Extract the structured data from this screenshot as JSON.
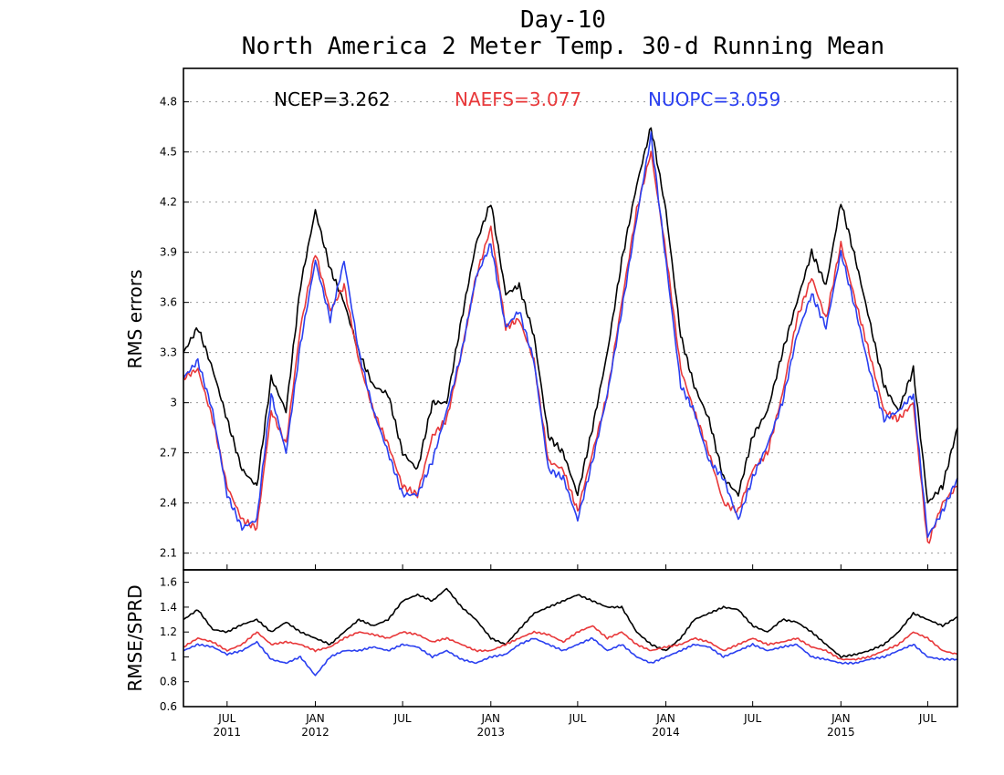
{
  "title_line1": "Day-10",
  "title_line2": "North America 2 Meter Temp. 30-d Running Mean",
  "chart_data": [
    {
      "type": "line",
      "panel": "top",
      "ylabel": "RMS errors",
      "ylim": [
        2.0,
        5.0
      ],
      "yticks": [
        "2.1",
        "2.4",
        "2.7",
        "3",
        "3.3",
        "3.6",
        "3.9",
        "4.2",
        "4.5",
        "4.8"
      ],
      "grid": true,
      "annotations": [
        {
          "text": "NCEP=3.262",
          "color": "#000000"
        },
        {
          "text": "NAEFS=3.077",
          "color": "#e8383a"
        },
        {
          "text": "NUOPC=3.059",
          "color": "#2a3ff0"
        }
      ],
      "x": [
        "2011-04-01",
        "2011-05-01",
        "2011-06-01",
        "2011-07-01",
        "2011-08-01",
        "2011-09-01",
        "2011-10-01",
        "2011-11-01",
        "2011-12-01",
        "2012-01-01",
        "2012-02-01",
        "2012-03-01",
        "2012-04-01",
        "2012-05-01",
        "2012-06-01",
        "2012-07-01",
        "2012-08-01",
        "2012-09-01",
        "2012-10-01",
        "2012-11-01",
        "2012-12-01",
        "2013-01-01",
        "2013-02-01",
        "2013-03-01",
        "2013-04-01",
        "2013-05-01",
        "2013-06-01",
        "2013-07-01",
        "2013-08-01",
        "2013-09-01",
        "2013-10-01",
        "2013-11-01",
        "2013-12-01",
        "2014-01-01",
        "2014-02-01",
        "2014-03-01",
        "2014-04-01",
        "2014-05-01",
        "2014-06-01",
        "2014-07-01",
        "2014-08-01",
        "2014-09-01",
        "2014-10-01",
        "2014-11-01",
        "2014-12-01",
        "2015-01-01",
        "2015-02-01",
        "2015-03-01",
        "2015-04-01",
        "2015-05-01",
        "2015-06-01",
        "2015-07-01",
        "2015-08-01",
        "2015-09-01"
      ],
      "series": [
        {
          "color": "#000000",
          "values": [
            3.3,
            3.45,
            3.2,
            2.9,
            2.6,
            2.5,
            3.15,
            2.95,
            3.7,
            4.15,
            3.8,
            3.6,
            3.3,
            3.1,
            3.05,
            2.7,
            2.6,
            3.0,
            3.0,
            3.5,
            3.95,
            4.2,
            3.65,
            3.7,
            3.4,
            2.8,
            2.7,
            2.45,
            2.85,
            3.3,
            3.85,
            4.3,
            4.65,
            4.15,
            3.4,
            3.1,
            2.9,
            2.55,
            2.45,
            2.8,
            2.95,
            3.3,
            3.6,
            3.9,
            3.7,
            4.2,
            3.85,
            3.5,
            3.1,
            2.95,
            3.2,
            2.4,
            2.5,
            2.85
          ]
        },
        {
          "color": "#e8383a",
          "values": [
            3.15,
            3.2,
            2.9,
            2.5,
            2.3,
            2.25,
            2.95,
            2.75,
            3.45,
            3.9,
            3.55,
            3.7,
            3.25,
            2.95,
            2.75,
            2.5,
            2.45,
            2.8,
            2.9,
            3.3,
            3.75,
            4.05,
            3.45,
            3.5,
            3.25,
            2.65,
            2.6,
            2.35,
            2.7,
            3.05,
            3.6,
            4.15,
            4.5,
            3.9,
            3.2,
            2.95,
            2.7,
            2.4,
            2.35,
            2.6,
            2.7,
            3.05,
            3.5,
            3.75,
            3.5,
            3.95,
            3.6,
            3.3,
            2.95,
            2.9,
            3.0,
            2.15,
            2.4,
            2.5
          ]
        },
        {
          "color": "#2a3ff0",
          "values": [
            3.15,
            3.25,
            2.95,
            2.45,
            2.25,
            2.3,
            3.05,
            2.7,
            3.35,
            3.85,
            3.5,
            3.85,
            3.3,
            2.95,
            2.7,
            2.45,
            2.45,
            2.65,
            2.95,
            3.3,
            3.75,
            3.95,
            3.45,
            3.55,
            3.25,
            2.6,
            2.55,
            2.3,
            2.65,
            3.05,
            3.55,
            4.1,
            4.6,
            3.85,
            3.1,
            2.95,
            2.65,
            2.55,
            2.3,
            2.55,
            2.75,
            3.0,
            3.4,
            3.65,
            3.45,
            3.9,
            3.55,
            3.2,
            2.9,
            2.95,
            3.05,
            2.2,
            2.35,
            2.55
          ]
        }
      ]
    },
    {
      "type": "line",
      "panel": "bottom",
      "ylabel": "RMSE/SPRD",
      "ylim": [
        0.6,
        1.7
      ],
      "yticks": [
        "0.6",
        "0.8",
        "1",
        "1.2",
        "1.4",
        "1.6"
      ],
      "grid": false,
      "xticks": [
        {
          "month": "JUL",
          "year": "2011",
          "date": "2011-07-01"
        },
        {
          "month": "JAN",
          "year": "2012",
          "date": "2012-01-01"
        },
        {
          "month": "JUL",
          "year": "",
          "date": "2012-07-01"
        },
        {
          "month": "JAN",
          "year": "2013",
          "date": "2013-01-01"
        },
        {
          "month": "JUL",
          "year": "",
          "date": "2013-07-01"
        },
        {
          "month": "JAN",
          "year": "2014",
          "date": "2014-01-01"
        },
        {
          "month": "JUL",
          "year": "",
          "date": "2014-07-01"
        },
        {
          "month": "JAN",
          "year": "2015",
          "date": "2015-01-01"
        },
        {
          "month": "JUL",
          "year": "",
          "date": "2015-07-01"
        }
      ],
      "xlim": [
        "2011-04-01",
        "2015-09-01"
      ],
      "x": [
        "2011-04-01",
        "2011-05-01",
        "2011-06-01",
        "2011-07-01",
        "2011-08-01",
        "2011-09-01",
        "2011-10-01",
        "2011-11-01",
        "2011-12-01",
        "2012-01-01",
        "2012-02-01",
        "2012-03-01",
        "2012-04-01",
        "2012-05-01",
        "2012-06-01",
        "2012-07-01",
        "2012-08-01",
        "2012-09-01",
        "2012-10-01",
        "2012-11-01",
        "2012-12-01",
        "2013-01-01",
        "2013-02-01",
        "2013-03-01",
        "2013-04-01",
        "2013-05-01",
        "2013-06-01",
        "2013-07-01",
        "2013-08-01",
        "2013-09-01",
        "2013-10-01",
        "2013-11-01",
        "2013-12-01",
        "2014-01-01",
        "2014-02-01",
        "2014-03-01",
        "2014-04-01",
        "2014-05-01",
        "2014-06-01",
        "2014-07-01",
        "2014-08-01",
        "2014-09-01",
        "2014-10-01",
        "2014-11-01",
        "2014-12-01",
        "2015-01-01",
        "2015-02-01",
        "2015-03-01",
        "2015-04-01",
        "2015-05-01",
        "2015-06-01",
        "2015-07-01",
        "2015-08-01",
        "2015-09-01"
      ],
      "series": [
        {
          "color": "#000000",
          "values": [
            1.3,
            1.38,
            1.22,
            1.2,
            1.26,
            1.3,
            1.2,
            1.28,
            1.2,
            1.15,
            1.1,
            1.2,
            1.3,
            1.25,
            1.3,
            1.45,
            1.5,
            1.45,
            1.55,
            1.4,
            1.3,
            1.15,
            1.1,
            1.22,
            1.35,
            1.4,
            1.45,
            1.5,
            1.45,
            1.4,
            1.4,
            1.2,
            1.1,
            1.05,
            1.15,
            1.3,
            1.35,
            1.4,
            1.38,
            1.25,
            1.2,
            1.3,
            1.28,
            1.2,
            1.1,
            1.0,
            1.02,
            1.05,
            1.1,
            1.2,
            1.35,
            1.3,
            1.25,
            1.32
          ]
        },
        {
          "color": "#e8383a",
          "values": [
            1.08,
            1.15,
            1.12,
            1.05,
            1.1,
            1.2,
            1.1,
            1.12,
            1.1,
            1.05,
            1.08,
            1.15,
            1.2,
            1.18,
            1.15,
            1.2,
            1.18,
            1.12,
            1.15,
            1.1,
            1.05,
            1.05,
            1.1,
            1.15,
            1.2,
            1.18,
            1.12,
            1.2,
            1.25,
            1.15,
            1.2,
            1.1,
            1.05,
            1.08,
            1.1,
            1.15,
            1.12,
            1.05,
            1.1,
            1.15,
            1.1,
            1.12,
            1.15,
            1.08,
            1.05,
            0.98,
            0.98,
            1.0,
            1.05,
            1.1,
            1.2,
            1.15,
            1.05,
            1.02
          ]
        },
        {
          "color": "#2a3ff0",
          "values": [
            1.05,
            1.1,
            1.08,
            1.02,
            1.05,
            1.12,
            0.98,
            0.95,
            1.0,
            0.85,
            1.0,
            1.05,
            1.05,
            1.08,
            1.05,
            1.1,
            1.08,
            1.0,
            1.05,
            0.98,
            0.95,
            1.0,
            1.02,
            1.1,
            1.15,
            1.1,
            1.05,
            1.1,
            1.15,
            1.05,
            1.1,
            1.0,
            0.95,
            1.0,
            1.05,
            1.1,
            1.08,
            1.0,
            1.05,
            1.1,
            1.05,
            1.08,
            1.1,
            1.0,
            0.98,
            0.95,
            0.95,
            0.98,
            1.0,
            1.05,
            1.1,
            1.0,
            0.98,
            0.98
          ]
        }
      ]
    }
  ]
}
